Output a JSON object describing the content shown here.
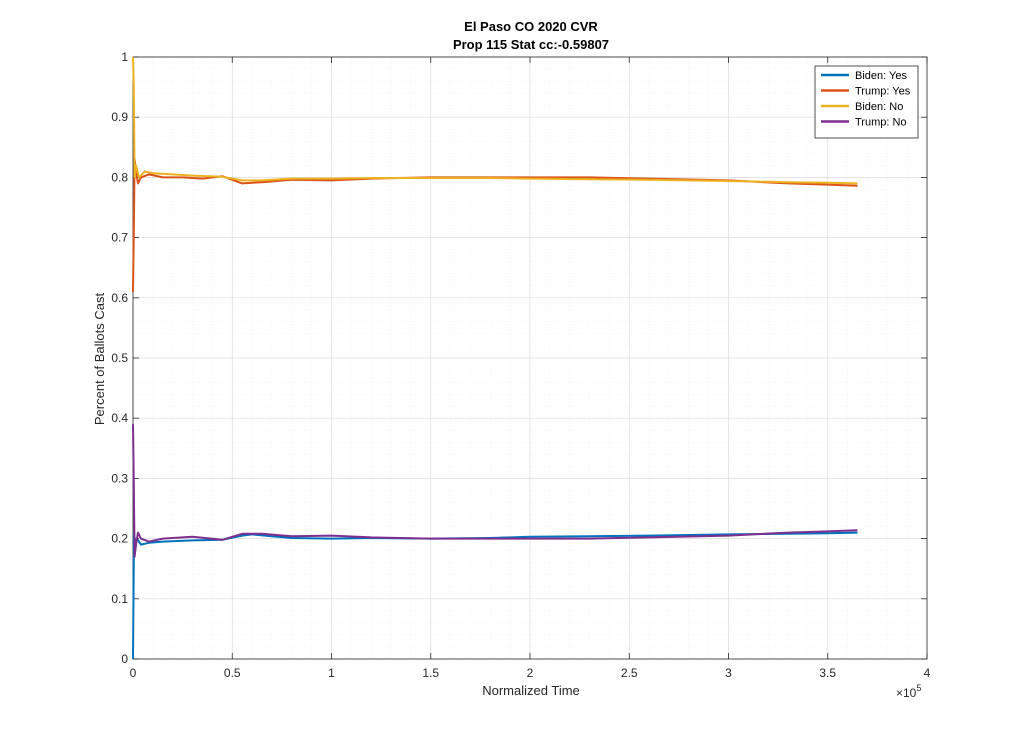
{
  "chart_data": {
    "type": "line",
    "title": "El Paso CO 2020 CVR",
    "subtitle": "Prop 115 Stat cc:-0.59807",
    "xlabel": "Normalized Time",
    "ylabel": "Percent of Ballots Cast",
    "x_exponent_label": "×10",
    "x_exponent_power": "5",
    "xlim": [
      0,
      4
    ],
    "ylim": [
      0,
      1
    ],
    "x_ticks": [
      0,
      0.5,
      1,
      1.5,
      2,
      2.5,
      3,
      3.5,
      4
    ],
    "x_tick_labels": [
      "0",
      "0.5",
      "1",
      "1.5",
      "2",
      "2.5",
      "3",
      "3.5",
      "4"
    ],
    "y_ticks": [
      0,
      0.1,
      0.2,
      0.3,
      0.4,
      0.5,
      0.6,
      0.7,
      0.8,
      0.9,
      1
    ],
    "y_tick_labels": [
      "0",
      "0.1",
      "0.2",
      "0.3",
      "0.4",
      "0.5",
      "0.6",
      "0.7",
      "0.8",
      "0.9",
      "1"
    ],
    "grid": "on",
    "legend_position": "top-right",
    "series": [
      {
        "name": "Biden: Yes",
        "color": "#0072BD",
        "points": [
          [
            0,
            0
          ],
          [
            0.005,
            0.21
          ],
          [
            0.01,
            0.19
          ],
          [
            0.02,
            0.2
          ],
          [
            0.04,
            0.19
          ],
          [
            0.08,
            0.193
          ],
          [
            0.15,
            0.195
          ],
          [
            0.3,
            0.197
          ],
          [
            0.45,
            0.198
          ],
          [
            0.55,
            0.205
          ],
          [
            0.6,
            0.207
          ],
          [
            0.7,
            0.204
          ],
          [
            0.8,
            0.201
          ],
          [
            1.0,
            0.2
          ],
          [
            1.2,
            0.201
          ],
          [
            1.5,
            0.2
          ],
          [
            1.8,
            0.201
          ],
          [
            2.0,
            0.203
          ],
          [
            2.3,
            0.204
          ],
          [
            2.6,
            0.205
          ],
          [
            3.0,
            0.207
          ],
          [
            3.3,
            0.208
          ],
          [
            3.5,
            0.209
          ],
          [
            3.65,
            0.21
          ]
        ]
      },
      {
        "name": "Trump: Yes",
        "color": "#D95319",
        "points": [
          [
            0,
            0.61
          ],
          [
            0.004,
            0.71
          ],
          [
            0.008,
            0.83
          ],
          [
            0.015,
            0.81
          ],
          [
            0.025,
            0.79
          ],
          [
            0.04,
            0.8
          ],
          [
            0.08,
            0.805
          ],
          [
            0.15,
            0.8
          ],
          [
            0.25,
            0.8
          ],
          [
            0.35,
            0.798
          ],
          [
            0.45,
            0.802
          ],
          [
            0.55,
            0.79
          ],
          [
            0.65,
            0.792
          ],
          [
            0.8,
            0.796
          ],
          [
            1.0,
            0.795
          ],
          [
            1.2,
            0.798
          ],
          [
            1.5,
            0.8
          ],
          [
            1.8,
            0.8
          ],
          [
            2.0,
            0.8
          ],
          [
            2.3,
            0.8
          ],
          [
            2.6,
            0.798
          ],
          [
            3.0,
            0.795
          ],
          [
            3.3,
            0.79
          ],
          [
            3.5,
            0.788
          ],
          [
            3.65,
            0.786
          ]
        ]
      },
      {
        "name": "Biden: No",
        "color": "#EDB120",
        "points": [
          [
            0,
            1
          ],
          [
            0.004,
            0.95
          ],
          [
            0.008,
            0.8
          ],
          [
            0.015,
            0.82
          ],
          [
            0.03,
            0.8
          ],
          [
            0.06,
            0.81
          ],
          [
            0.1,
            0.807
          ],
          [
            0.2,
            0.805
          ],
          [
            0.3,
            0.803
          ],
          [
            0.45,
            0.801
          ],
          [
            0.55,
            0.795
          ],
          [
            0.65,
            0.795
          ],
          [
            0.8,
            0.798
          ],
          [
            1.0,
            0.798
          ],
          [
            1.2,
            0.799
          ],
          [
            1.5,
            0.799
          ],
          [
            1.8,
            0.799
          ],
          [
            2.0,
            0.798
          ],
          [
            2.3,
            0.797
          ],
          [
            2.6,
            0.796
          ],
          [
            3.0,
            0.794
          ],
          [
            3.3,
            0.792
          ],
          [
            3.5,
            0.791
          ],
          [
            3.65,
            0.79
          ]
        ]
      },
      {
        "name": "Trump: No",
        "color": "#7E2F8E",
        "points": [
          [
            0,
            0.39
          ],
          [
            0.004,
            0.29
          ],
          [
            0.008,
            0.17
          ],
          [
            0.015,
            0.19
          ],
          [
            0.025,
            0.21
          ],
          [
            0.04,
            0.2
          ],
          [
            0.08,
            0.195
          ],
          [
            0.15,
            0.2
          ],
          [
            0.3,
            0.203
          ],
          [
            0.45,
            0.198
          ],
          [
            0.55,
            0.208
          ],
          [
            0.65,
            0.208
          ],
          [
            0.8,
            0.204
          ],
          [
            1.0,
            0.205
          ],
          [
            1.2,
            0.202
          ],
          [
            1.5,
            0.2
          ],
          [
            1.8,
            0.2
          ],
          [
            2.0,
            0.2
          ],
          [
            2.3,
            0.2
          ],
          [
            2.6,
            0.202
          ],
          [
            3.0,
            0.205
          ],
          [
            3.3,
            0.21
          ],
          [
            3.5,
            0.212
          ],
          [
            3.65,
            0.214
          ]
        ]
      }
    ]
  }
}
